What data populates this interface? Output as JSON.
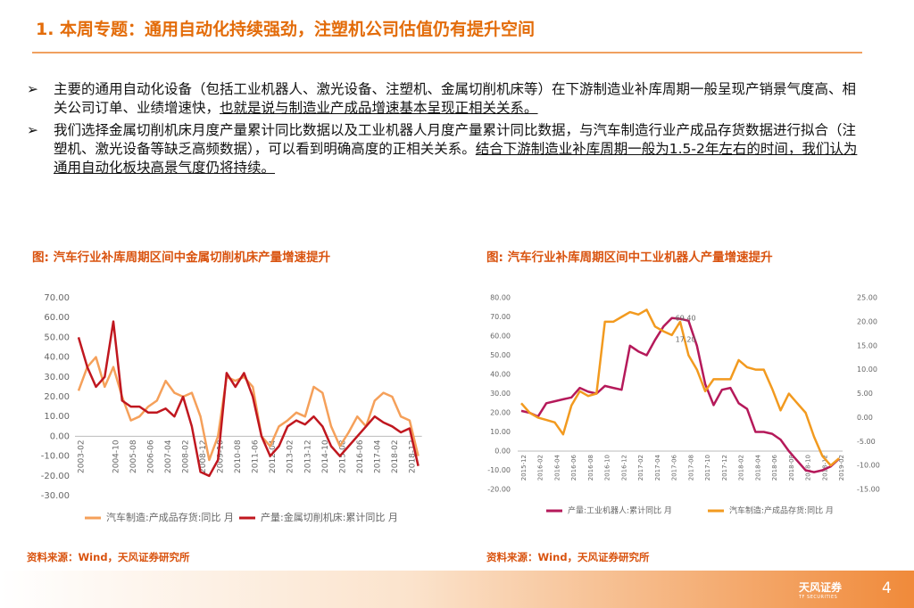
{
  "header": {
    "title": "1. 本周专题：通用自动化持续强劲，注塑机公司估值仍有提升空间"
  },
  "bullets": [
    {
      "text": "主要的通用自动化设备（包括工业机器人、激光设备、注塑机、金属切削机床等）在下游制造业补库周期一般呈现产销景气度高、相关公司订单、业绩增速快，",
      "underlined": "也就是说与制造业产成品增速基本呈现正相关关系。"
    },
    {
      "text": "我们选择金属切削机床月度产量累计同比数据以及工业机器人月度产量累计同比数据，与汽车制造行业产成品存货数据进行拟合（注塑机、激光设备等缺乏高频数据），可以看到明确高度的正相关关系。",
      "underlined": "结合下游制造业补库周期一般为1.5-2年左右的时间，我们认为通用自动化板块高景气度仍将持续。"
    }
  ],
  "chart_data": [
    {
      "type": "line",
      "title": "图: 汽车行业补库周期区间中金属切削机床产量增速提升",
      "source": "资料来源：Wind，天风证券研究所",
      "categories": [
        "2003-02",
        null,
        null,
        null,
        "2004-10",
        null,
        "2005-08",
        null,
        "2006-06",
        null,
        "2007-04",
        null,
        "2008-02",
        null,
        "2008-12",
        null,
        "2009-10",
        null,
        "2010-08",
        null,
        "2011-06",
        null,
        "2012-04",
        null,
        "2013-02",
        null,
        "2013-12",
        null,
        "2014-10",
        null,
        "2015-08",
        null,
        "2016-06",
        null,
        "2017-04",
        null,
        "2018-02",
        null,
        "2018-12",
        null
      ],
      "series": [
        {
          "name": "汽车制造:产成品存货:同比 月",
          "color": "#f5a05a",
          "values": [
            23,
            35,
            40,
            25,
            35,
            20,
            8,
            10,
            15,
            18,
            28,
            22,
            20,
            22,
            10,
            -12,
            0,
            30,
            28,
            30,
            25,
            0,
            -5,
            5,
            8,
            12,
            10,
            25,
            22,
            5,
            -5,
            2,
            10,
            5,
            18,
            22,
            20,
            10,
            8,
            -10
          ]
        },
        {
          "name": "产量:金属切削机床:累计同比 月",
          "color": "#c0171f",
          "values": [
            50,
            35,
            25,
            30,
            58,
            18,
            15,
            15,
            12,
            12,
            14,
            10,
            20,
            5,
            -18,
            -20,
            -12,
            32,
            25,
            32,
            20,
            0,
            -10,
            -5,
            5,
            8,
            6,
            10,
            5,
            -5,
            -10,
            -5,
            0,
            5,
            10,
            7,
            5,
            2,
            4,
            -15
          ]
        }
      ],
      "ylim": [
        -30,
        70
      ],
      "yticks": [
        {
          "value": -30,
          "label": "-30.00"
        },
        {
          "value": -20,
          "label": "-20.00"
        },
        {
          "value": -10,
          "label": "-10.00"
        },
        {
          "value": 0,
          "label": "0.00"
        },
        {
          "value": 10,
          "label": "10.00"
        },
        {
          "value": 20,
          "label": "20.00"
        },
        {
          "value": 30,
          "label": "30.00"
        },
        {
          "value": 40,
          "label": "40.00"
        },
        {
          "value": 50,
          "label": "50.00"
        },
        {
          "value": 60,
          "label": "60.00"
        },
        {
          "value": 70,
          "label": "70.00"
        }
      ],
      "grid": false,
      "legend": "bottom"
    },
    {
      "type": "line",
      "title": "图: 汽车行业补库周期区间中工业机器人产量增速提升",
      "source": "资料来源：Wind，天风证券研究所",
      "categories": [
        "2015-12",
        null,
        "2016-02",
        null,
        "2016-04",
        null,
        "2016-06",
        null,
        "2016-08",
        null,
        "2016-10",
        null,
        "2016-12",
        null,
        "2017-02",
        null,
        "2017-04",
        null,
        "2017-06",
        null,
        "2017-08",
        null,
        "2017-10",
        null,
        "2017-12",
        null,
        "2018-02",
        null,
        "2018-04",
        null,
        "2018-06",
        null,
        "2018-08",
        null,
        "2018-10",
        null,
        "2018-12",
        null,
        "2019-02"
      ],
      "series": [
        {
          "name": "产量:工业机器人:累计同比 月",
          "color": "#b5195a",
          "values": [
            21,
            20,
            18,
            25,
            26,
            27,
            28,
            33,
            31,
            30,
            34,
            33,
            32,
            55,
            52,
            50,
            58,
            65,
            69.4,
            69,
            68,
            55,
            35,
            24,
            32,
            33,
            25,
            22,
            10,
            10,
            9,
            6,
            0,
            -5,
            -10,
            -11,
            -10,
            -8,
            -4
          ]
        },
        {
          "name": "汽车制造:产成品存货:同比 月",
          "color": "#f29a1f",
          "axis": "y2",
          "values": [
            3,
            1,
            0,
            -0.5,
            -1,
            -3.5,
            2.5,
            5.5,
            4.5,
            5,
            20,
            20,
            21,
            22,
            21.5,
            22.5,
            19,
            18,
            17.2,
            20,
            13,
            10,
            5.5,
            8,
            8,
            8,
            12,
            10.5,
            10,
            10,
            6,
            1.5,
            5,
            3,
            1,
            -4,
            -8,
            -10,
            -8.5
          ]
        }
      ],
      "annotations": [
        "69.40",
        "17.20"
      ],
      "ylim": [
        -20,
        80
      ],
      "yticks": [
        {
          "value": -20,
          "label": "-20.00"
        },
        {
          "value": -10,
          "label": "-10.00"
        },
        {
          "value": 0,
          "label": "0.00"
        },
        {
          "value": 10,
          "label": "10.00"
        },
        {
          "value": 20,
          "label": "20.00"
        },
        {
          "value": 30,
          "label": "30.00"
        },
        {
          "value": 40,
          "label": "40.00"
        },
        {
          "value": 50,
          "label": "50.00"
        },
        {
          "value": 60,
          "label": "60.00"
        },
        {
          "value": 70,
          "label": "70.00"
        },
        {
          "value": 80,
          "label": "80.00"
        }
      ],
      "y2lim": [
        -15,
        25
      ],
      "y2ticks": [
        {
          "value": -15,
          "label": "-15.00"
        },
        {
          "value": -10,
          "label": "-10.00"
        },
        {
          "value": -5,
          "label": "-5.00"
        },
        {
          "value": 0,
          "label": "0.00"
        },
        {
          "value": 5,
          "label": "5.00"
        },
        {
          "value": 10,
          "label": "10.00"
        },
        {
          "value": 15,
          "label": "15.00"
        },
        {
          "value": 20,
          "label": "20.00"
        },
        {
          "value": 25,
          "label": "25.00"
        }
      ],
      "grid": false,
      "legend": "bottom"
    }
  ],
  "footer": {
    "brand": "天风证券",
    "brand_en": "TF SECURITIES",
    "page": "4"
  }
}
